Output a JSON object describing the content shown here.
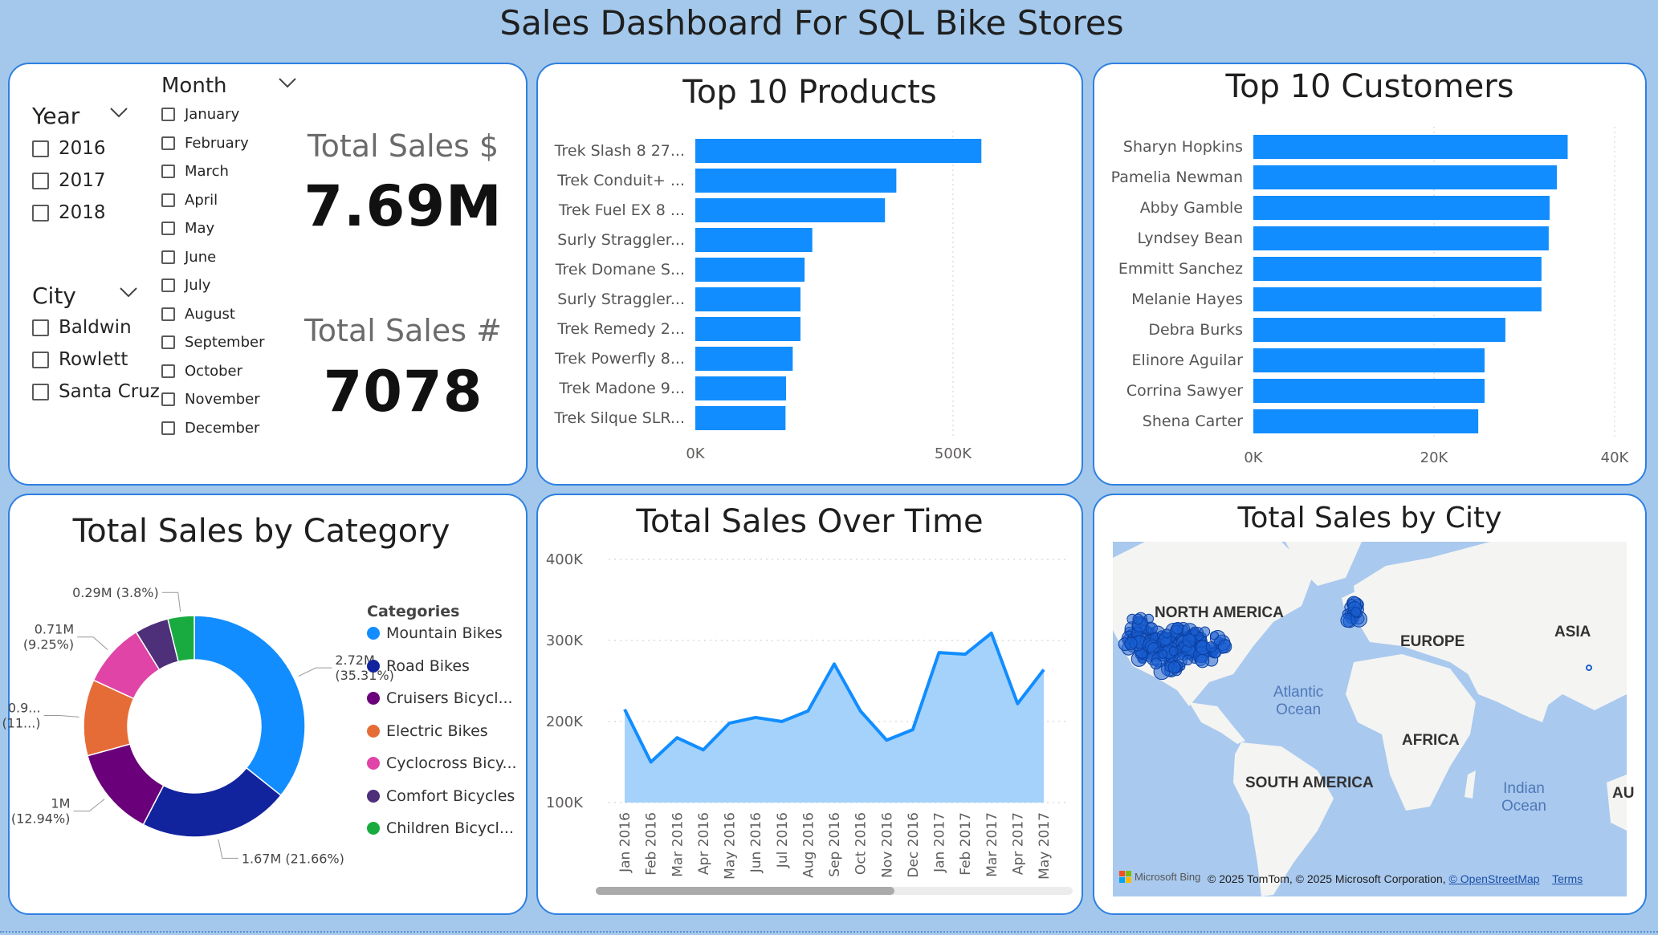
{
  "page_title": "Sales Dashboard For SQL Bike Stores",
  "slicers": {
    "year": {
      "label": "Year",
      "items": [
        "2016",
        "2017",
        "2018"
      ]
    },
    "city": {
      "label": "City",
      "items": [
        "Baldwin",
        "Rowlett",
        "Santa Cruz"
      ]
    },
    "month": {
      "label": "Month",
      "items": [
        "January",
        "February",
        "March",
        "April",
        "May",
        "June",
        "July",
        "August",
        "September",
        "October",
        "November",
        "December"
      ]
    }
  },
  "kpis": {
    "total_sales_amount": {
      "label": "Total Sales $",
      "value": "7.69M"
    },
    "total_sales_count": {
      "label": "Total Sales #",
      "value": "7078"
    }
  },
  "chart_data": [
    {
      "id": "top-products",
      "type": "bar",
      "orientation": "horizontal",
      "title": "Top 10 Products",
      "categories": [
        "Trek Slash 8 27...",
        "Trek Conduit+ ...",
        "Trek Fuel EX 8 ...",
        "Surly Straggler...",
        "Trek Domane S...",
        "Surly Straggler...",
        "Trek Remedy 2...",
        "Trek Powerfly 8...",
        "Trek Madone 9...",
        "Trek Silque SLR..."
      ],
      "values": [
        555000,
        390000,
        368000,
        227000,
        212000,
        204000,
        204000,
        189000,
        176000,
        175000
      ],
      "xlim": [
        0,
        620000
      ],
      "ticks": [
        {
          "value": 0,
          "label": "0K"
        },
        {
          "value": 500000,
          "label": "500K"
        }
      ],
      "color": "#118dff"
    },
    {
      "id": "top-customers",
      "type": "bar",
      "orientation": "horizontal",
      "title": "Top 10 Customers",
      "categories": [
        "Sharyn Hopkins",
        "Pamelia Newman",
        "Abby Gamble",
        "Lyndsey Bean",
        "Emmitt Sanchez",
        "Melanie Hayes",
        "Debra Burks",
        "Elinore Aguilar",
        "Corrina Sawyer",
        "Shena Carter"
      ],
      "values": [
        34800,
        33600,
        32800,
        32700,
        31900,
        31900,
        27900,
        25600,
        25600,
        24900
      ],
      "xlim": [
        0,
        40000
      ],
      "ticks": [
        {
          "value": 0,
          "label": "0K"
        },
        {
          "value": 20000,
          "label": "20K"
        },
        {
          "value": 40000,
          "label": "40K"
        }
      ],
      "color": "#118dff"
    },
    {
      "id": "sales-by-category",
      "type": "pie",
      "title": "Total Sales by Category",
      "legend_title": "Categories",
      "categories": [
        "Mountain Bikes",
        "Road Bikes",
        "Cruisers Bicycl...",
        "Electric Bikes",
        "Cyclocross Bicy...",
        "Comfort Bicycles",
        "Children Bicycl..."
      ],
      "values": [
        35.31,
        21.66,
        12.94,
        11.0,
        9.25,
        4.9,
        3.8
      ],
      "colors": [
        "#118dff",
        "#12239e",
        "#6b007b",
        "#e66c37",
        "#e044a7",
        "#4d2f7a",
        "#1aab40"
      ],
      "labels": [
        [
          "2.72M",
          "(35.31%)"
        ],
        [
          "1.67M (21.66%)"
        ],
        [
          "1M",
          "(12.94%)"
        ],
        [
          "0.9...",
          "(11...)"
        ],
        [
          "0.71M",
          "(9.25%)"
        ],
        [],
        [
          "0.29M (3.8%)"
        ]
      ]
    },
    {
      "id": "sales-over-time",
      "type": "area",
      "title": "Total Sales Over Time",
      "x": [
        "Jan 2016",
        "Feb 2016",
        "Mar 2016",
        "Apr 2016",
        "May 2016",
        "Jun 2016",
        "Jul 2016",
        "Aug 2016",
        "Sep 2016",
        "Oct 2016",
        "Nov 2016",
        "Dec 2016",
        "Jan 2017",
        "Feb 2017",
        "Mar 2017",
        "Apr 2017",
        "May 2017"
      ],
      "values": [
        215000,
        150000,
        180000,
        165000,
        198000,
        205000,
        200000,
        213000,
        271000,
        213000,
        177000,
        190000,
        285000,
        283000,
        309000,
        222000,
        264000
      ],
      "ylim": [
        100000,
        400000
      ],
      "ticks": [
        {
          "value": 100000,
          "label": "100K"
        },
        {
          "value": 200000,
          "label": "200K"
        },
        {
          "value": 300000,
          "label": "300K"
        },
        {
          "value": 400000,
          "label": "400K"
        }
      ],
      "line_color": "#118dff",
      "fill_color": "#a5d2fb"
    }
  ],
  "map": {
    "title": "Total Sales by City",
    "labels": {
      "north_america": "NORTH AMERICA",
      "europe": "EUROPE",
      "asia": "ASIA",
      "africa": "AFRICA",
      "south_america": "SOUTH AMERICA",
      "atlantic": "Atlantic\nOcean",
      "indian": "Indian\nOcean",
      "au": "AU"
    },
    "attribution": {
      "bing": "Microsoft Bing",
      "copyright": "© 2025 TomTom, © 2025 Microsoft Corporation,",
      "osm": "© OpenStreetMap",
      "terms": "Terms"
    },
    "colors": {
      "water": "#a9c9ee",
      "land": "#f4f4f2",
      "bubble": "#1a5fd1"
    }
  }
}
